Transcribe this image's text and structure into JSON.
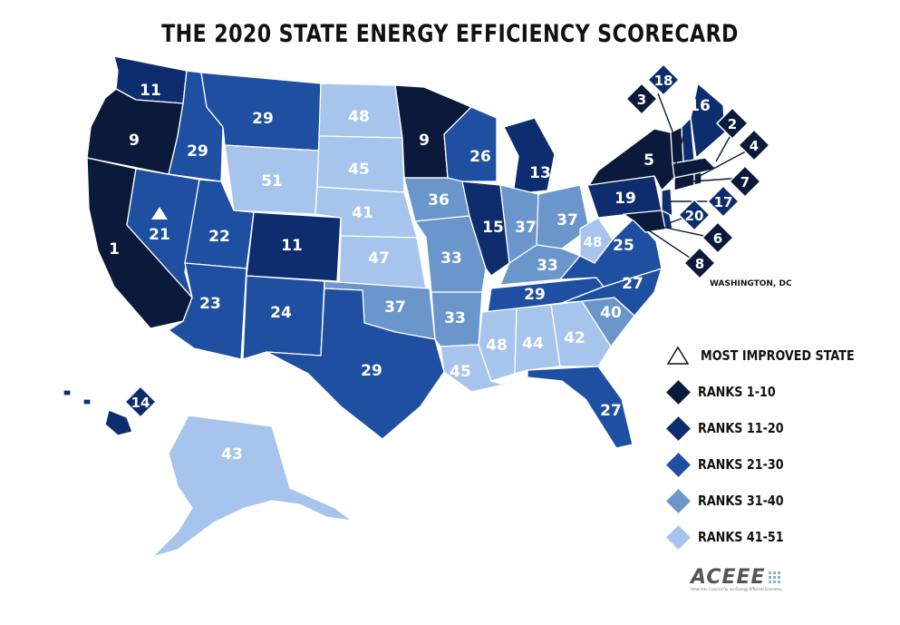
{
  "title": "THE 2020 STATE ENERGY EFFICIENCY SCORECARD",
  "colors": {
    "ranks_1_10": "#0b1a3a",
    "ranks_11_20": "#0e2d6e",
    "ranks_21_30": "#1f4fa0",
    "ranks_31_40": "#6b96cc",
    "ranks_41_51": "#a7c5ec",
    "border": "#ffffff"
  },
  "legend": {
    "most_improved": "MOST IMPROVED STATE",
    "ranks_1_10": "RANKS 1-10",
    "ranks_11_20": "RANKS 11-20",
    "ranks_21_30": "RANKS 21-30",
    "ranks_31_40": "RANKS 31-40",
    "ranks_41_51": "RANKS 41-51"
  },
  "dc_label": "WASHINGTON, DC",
  "logo": {
    "name": "ACEEE",
    "tagline": "American Council for an Energy-Efficient Economy"
  },
  "states": {
    "WA": "11",
    "OR": "9",
    "CA": "1",
    "ID": "29",
    "NV": "21",
    "MT": "29",
    "WY": "51",
    "UT": "22",
    "AZ": "23",
    "CO": "11",
    "NM": "24",
    "ND": "48",
    "SD": "45",
    "NE": "41",
    "KS": "47",
    "OK": "37",
    "TX": "29",
    "MN": "9",
    "IA": "36",
    "MO": "33",
    "AR": "33",
    "LA": "45",
    "WI": "26",
    "IL": "15",
    "MI": "13",
    "IN": "37",
    "OH": "37",
    "KY": "33",
    "TN": "29",
    "MS": "48",
    "AL": "44",
    "GA": "42",
    "FL": "27",
    "SC": "40",
    "NC": "27",
    "VA": "25",
    "WV": "48",
    "PA": "19",
    "NY": "5",
    "AK": "43",
    "HI": "14",
    "VT": "3",
    "NH": "18",
    "ME": "16",
    "MA": "2",
    "RI": "4",
    "CT": "7",
    "NJ": "17",
    "DE": "20",
    "MD": "6",
    "DC": "8"
  }
}
